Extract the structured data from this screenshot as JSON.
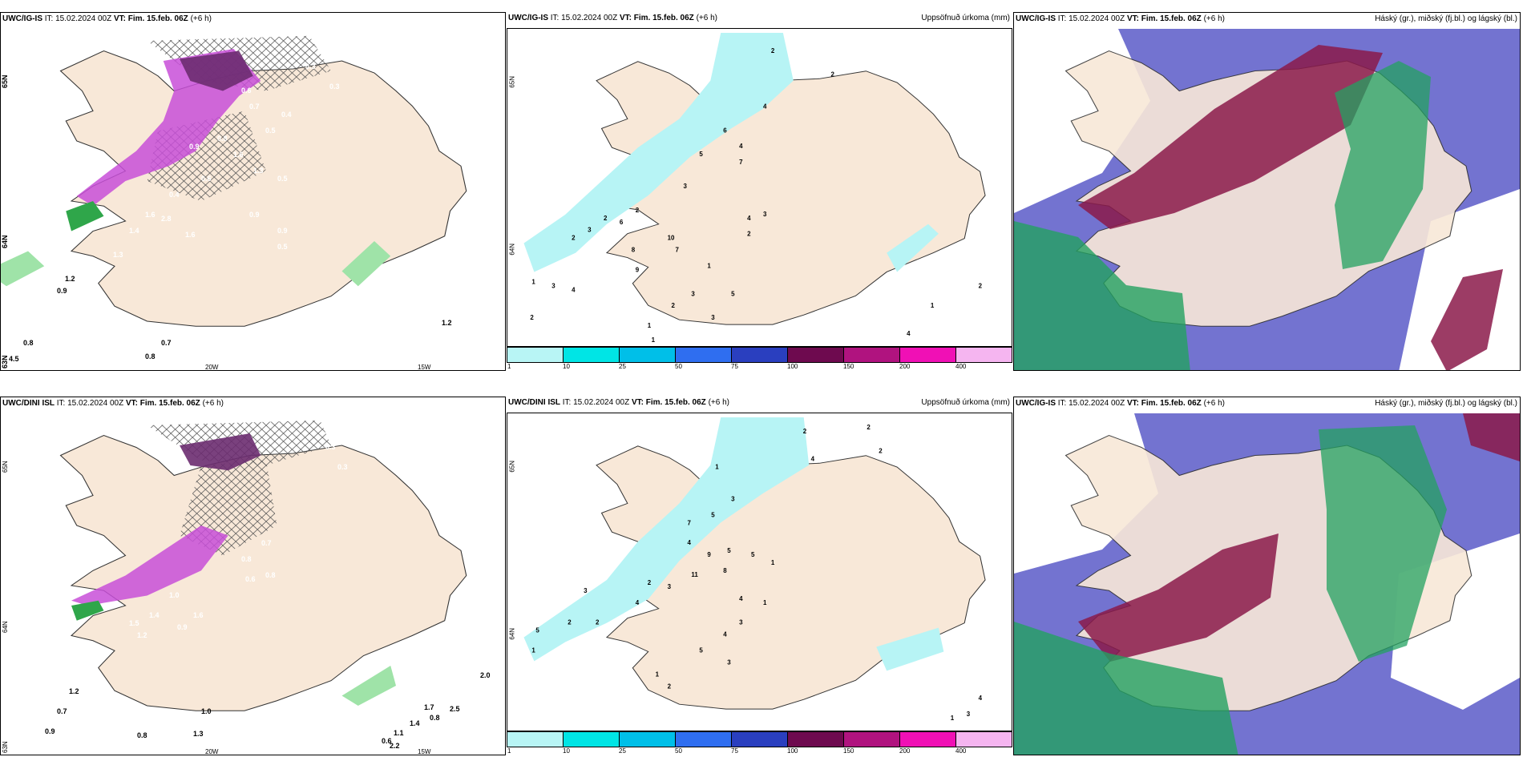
{
  "panels": {
    "p1": {
      "model": "UWC/IG-IS",
      "it_label": "IT:",
      "it": "15.02.2024 00Z",
      "vt_label": "VT:",
      "vt": "Fim. 15.feb. 06Z",
      "lead": "(+6 h)",
      "lat_labels": [
        "65N",
        "64N",
        "63N"
      ],
      "lon_labels": [
        "20W",
        "15W"
      ],
      "values": [
        "0.3",
        "0.6",
        "0.4",
        "0.3",
        "0.5",
        "0.8",
        "1.6",
        "0.7",
        "0.5",
        "0.9",
        "1.3",
        "0.6",
        "0.4",
        "2.8",
        "1.4",
        "1.6",
        "0.9",
        "1.6",
        "0.5",
        "0.9",
        "1.3",
        "0.7",
        "0.8",
        "0.8",
        "1.2",
        "4.5",
        "0.9",
        "1.2"
      ]
    },
    "p2": {
      "model": "UWC/IG-IS",
      "it_label": "IT:",
      "it": "15.02.2024 00Z",
      "vt_label": "VT:",
      "vt": "Fim. 15.feb. 06Z",
      "lead": "(+6 h)",
      "right_title": "Uppsöfnuð úrkoma (mm)",
      "lat_labels": [
        "65N",
        "64N"
      ],
      "values": [
        "2",
        "2",
        "4",
        "6",
        "5",
        "4",
        "7",
        "3",
        "2",
        "6",
        "10",
        "7",
        "8",
        "9",
        "1",
        "2",
        "3",
        "2",
        "4",
        "3",
        "2",
        "1",
        "3",
        "4",
        "5",
        "3",
        "1",
        "2",
        "3",
        "4",
        "1",
        "2",
        "2",
        "1"
      ]
    },
    "p3": {
      "model": "UWC/IG-IS",
      "it_label": "IT:",
      "it": "15.02.2024 00Z",
      "vt_label": "VT:",
      "vt": "Fim. 15.feb. 06Z",
      "lead": "(+6 h)",
      "right_title": "Háský (gr.), miðský (fj.bl.) og lágský (bl.)"
    },
    "p4": {
      "model": "UWC/DINI ISL",
      "it_label": "IT:",
      "it": "15.02.2024 00Z",
      "vt_label": "VT:",
      "vt": "Fim. 15.feb. 06Z",
      "lead": "(+6 h)",
      "lat_labels": [
        "65N",
        "64N",
        "63N"
      ],
      "lon_labels": [
        "20W",
        "15W"
      ],
      "values": [
        "0.3",
        "0.4",
        "0.3",
        "0.7",
        "0.8",
        "0.6",
        "1.0",
        "1.4",
        "1.5",
        "0.9",
        "1.2",
        "0.8",
        "1.6",
        "0.8",
        "1.2",
        "0.7",
        "0.9",
        "0.8",
        "1.3",
        "1.1",
        "1.4",
        "1.7",
        "0.8",
        "2.0",
        "1.0",
        "0.6",
        "2.2",
        "2.5"
      ]
    },
    "p5": {
      "model": "UWC/DINI ISL",
      "it_label": "IT:",
      "it": "15.02.2024 00Z",
      "vt_label": "VT:",
      "vt": "Fim. 15.feb. 06Z",
      "lead": "(+6 h)",
      "right_title": "Uppsöfnuð úrkoma (mm)",
      "lat_labels": [
        "65N",
        "64N"
      ],
      "values": [
        "2",
        "2",
        "2",
        "4",
        "1",
        "3",
        "7",
        "5",
        "4",
        "9",
        "5",
        "11",
        "8",
        "3",
        "2",
        "4",
        "5",
        "1",
        "4",
        "1",
        "3",
        "2",
        "5",
        "2",
        "1",
        "3",
        "4",
        "5",
        "3",
        "4",
        "3",
        "1",
        "2",
        "1"
      ]
    },
    "p6": {
      "model": "UWC/IG-IS",
      "it_label": "IT:",
      "it": "15.02.2024 00Z",
      "vt_label": "VT:",
      "vt": "Fim. 15.feb. 06Z",
      "lead": "(+6 h)",
      "right_title": "Háský (gr.), miðský (fj.bl.) og lágský (bl.)"
    }
  },
  "colorbar": {
    "colors": [
      "#b8f5f5",
      "#00e5e5",
      "#00bfe8",
      "#2f6ef0",
      "#2a3fbf",
      "#6e0a4f",
      "#b0137f",
      "#f010b5",
      "#f5b5f0"
    ],
    "ticks": [
      "1",
      "10",
      "25",
      "50",
      "75",
      "100",
      "150",
      "200",
      "400"
    ]
  },
  "colors": {
    "land": "#f8e8d8",
    "precip_light": "#b7f4f5",
    "pink": "#c84fd8",
    "purple": "#6c2c70",
    "green": "#2fa64a",
    "cloud_high": "#23a160",
    "cloud_mid": "#8b1a4a",
    "cloud_low": "#4a4ac0"
  }
}
